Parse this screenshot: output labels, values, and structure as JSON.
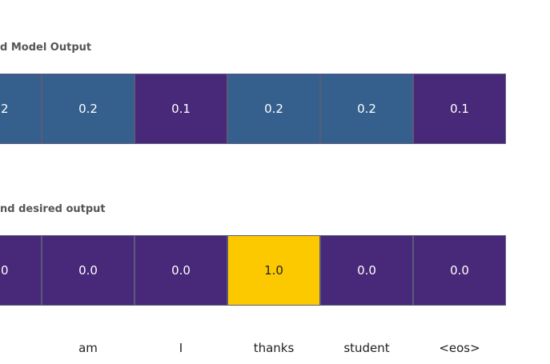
{
  "rows": [
    {
      "title": "d Model Output",
      "cells": [
        {
          "label": "2",
          "color": "#355f8d"
        },
        {
          "label": "0.2",
          "color": "#355f8d"
        },
        {
          "label": "0.1",
          "color": "#482878"
        },
        {
          "label": "0.2",
          "color": "#355f8d"
        },
        {
          "label": "0.2",
          "color": "#355f8d"
        },
        {
          "label": "0.1",
          "color": "#482878"
        }
      ]
    },
    {
      "title": "nd desired output",
      "cells": [
        {
          "label": "0",
          "color": "#482878"
        },
        {
          "label": "0.0",
          "color": "#482878"
        },
        {
          "label": "0.0",
          "color": "#482878"
        },
        {
          "label": "1.0",
          "color": "#fcc800"
        },
        {
          "label": "0.0",
          "color": "#482878"
        },
        {
          "label": "0.0",
          "color": "#482878"
        }
      ]
    }
  ],
  "words": [
    "am",
    "I",
    "thanks",
    "student",
    "<eos>"
  ]
}
